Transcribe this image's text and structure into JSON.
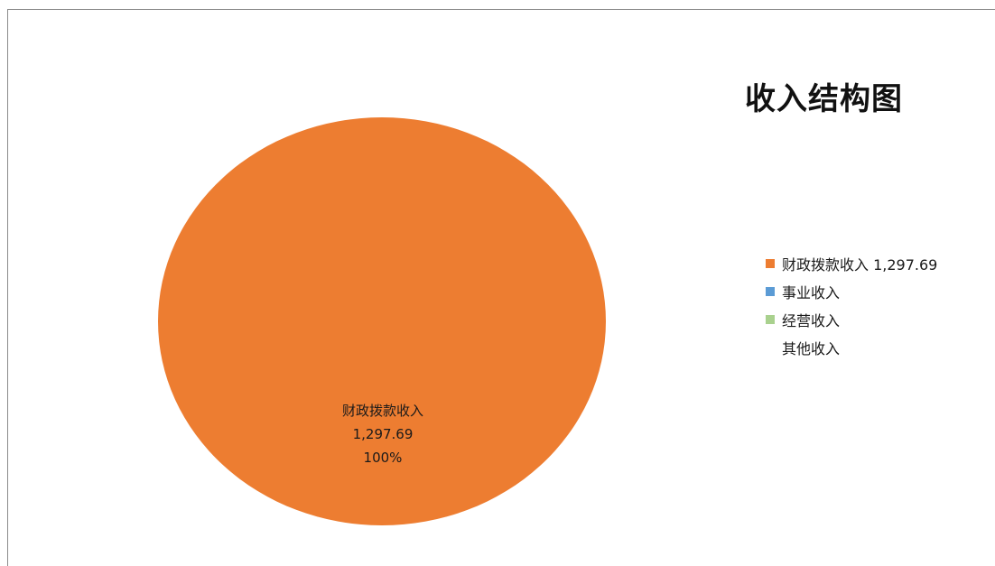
{
  "chart_data": {
    "type": "pie",
    "title": "收入结构图",
    "slices": [
      {
        "label": "财政拨款收入",
        "value": 1297.69,
        "value_text": "1,297.69",
        "legend_text": "财政拨款收入 1,297.69",
        "percent_text": "100%",
        "color": "#ed7d31"
      },
      {
        "label": "事业收入",
        "value": 0,
        "value_text": "",
        "legend_text": "事业收入",
        "percent_text": "",
        "color": "#5b9bd5"
      },
      {
        "label": "经营收入",
        "value": 0,
        "value_text": "",
        "legend_text": "经营收入",
        "percent_text": "",
        "color": "#a9d18e"
      },
      {
        "label": "其他收入",
        "value": 0,
        "value_text": "",
        "legend_text": "其他收入",
        "percent_text": "",
        "color": ""
      }
    ],
    "legend_position": "right"
  }
}
